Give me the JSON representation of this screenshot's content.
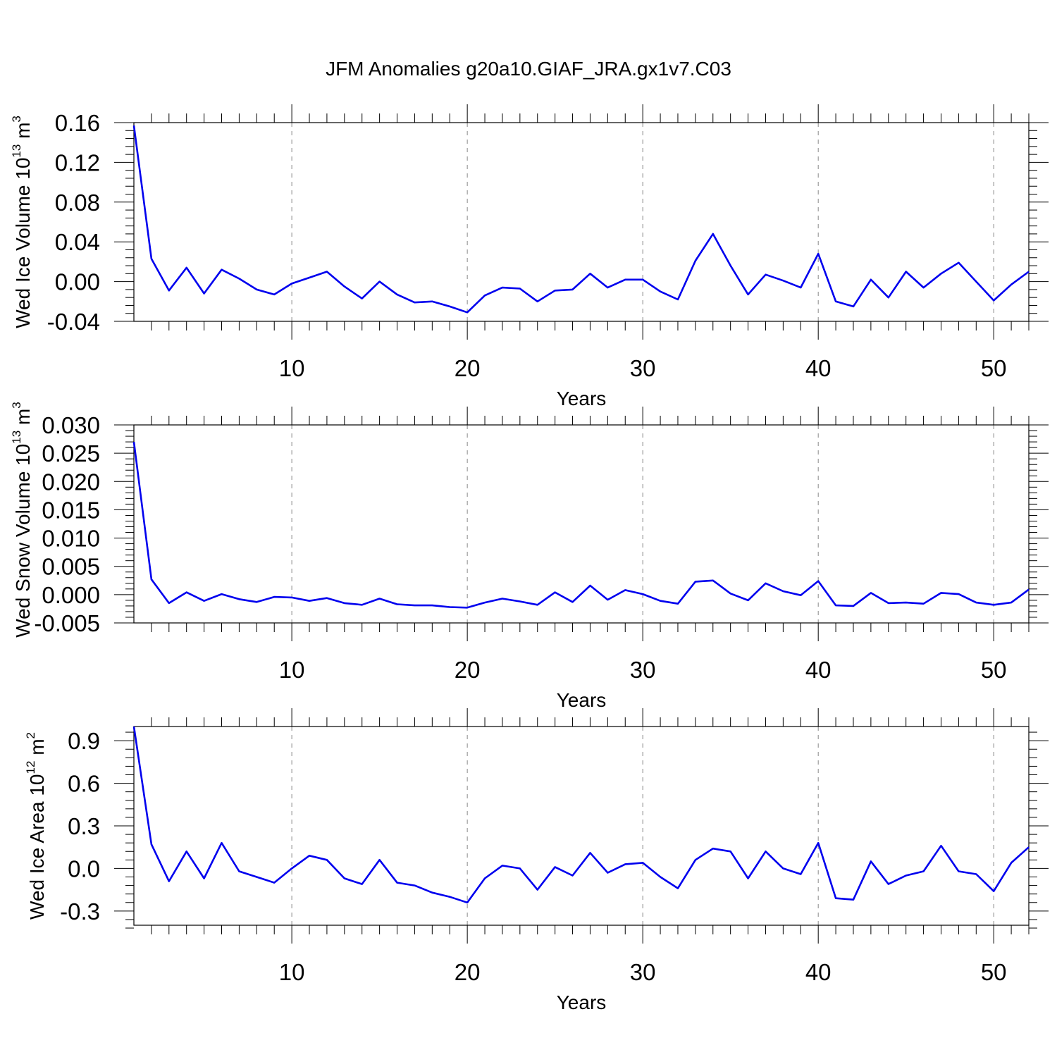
{
  "title": "JFM Anomalies g20a10.GIAF_JRA.gx1v7.C03",
  "chart_data": [
    {
      "type": "line",
      "title": "JFM Anomalies g20a10.GIAF_JRA.gx1v7.C03",
      "ylabel": "Wed Ice Volume",
      "ylabel_unit_base": "10",
      "ylabel_unit_exp": "13",
      "ylabel_unit_suffix": "m",
      "ylabel_unit_suffix_exp": "3",
      "xlabel": "Years",
      "xlim": [
        1,
        52
      ],
      "ylim": [
        -0.04,
        0.16
      ],
      "xticks": [
        10,
        20,
        30,
        40,
        50
      ],
      "xtick_labels": [
        "10",
        "20",
        "30",
        "40",
        "50"
      ],
      "yticks": [
        -0.04,
        0.0,
        0.04,
        0.08,
        0.12,
        0.16
      ],
      "ytick_labels": [
        "-0.04",
        "0.00",
        "0.04",
        "0.08",
        "0.12",
        "0.16"
      ],
      "grid": "vertical dashed at x ticks",
      "color": "#0000ee",
      "series": [
        {
          "name": "Wed Ice Volume",
          "x": [
            1,
            2,
            3,
            4,
            5,
            6,
            7,
            8,
            9,
            10,
            11,
            12,
            13,
            14,
            15,
            16,
            17,
            18,
            19,
            20,
            21,
            22,
            23,
            24,
            25,
            26,
            27,
            28,
            29,
            30,
            31,
            32,
            33,
            34,
            35,
            36,
            37,
            38,
            39,
            40,
            41,
            42,
            43,
            44,
            45,
            46,
            47,
            48,
            49,
            50,
            51,
            52
          ],
          "values": [
            0.157,
            0.023,
            -0.009,
            0.014,
            -0.012,
            0.012,
            0.003,
            -0.008,
            -0.013,
            -0.002,
            0.004,
            0.01,
            -0.005,
            -0.017,
            0.0,
            -0.013,
            -0.021,
            -0.02,
            -0.025,
            -0.031,
            -0.014,
            -0.006,
            -0.007,
            -0.02,
            -0.009,
            -0.008,
            0.008,
            -0.006,
            0.002,
            0.002,
            -0.01,
            -0.018,
            0.021,
            0.048,
            0.016,
            -0.013,
            0.007,
            0.001,
            -0.006,
            0.028,
            -0.02,
            -0.025,
            0.002,
            -0.016,
            0.01,
            -0.006,
            0.008,
            0.019,
            0.0,
            -0.019,
            -0.003,
            0.01
          ]
        }
      ]
    },
    {
      "type": "line",
      "ylabel": "Wed Snow Volume",
      "ylabel_unit_base": "10",
      "ylabel_unit_exp": "13",
      "ylabel_unit_suffix": "m",
      "ylabel_unit_suffix_exp": "3",
      "xlabel": "Years",
      "xlim": [
        1,
        52
      ],
      "ylim": [
        -0.005,
        0.03
      ],
      "xticks": [
        10,
        20,
        30,
        40,
        50
      ],
      "xtick_labels": [
        "10",
        "20",
        "30",
        "40",
        "50"
      ],
      "yticks": [
        -0.005,
        0.0,
        0.005,
        0.01,
        0.015,
        0.02,
        0.025,
        0.03
      ],
      "ytick_labels": [
        "-0.005",
        "0.000",
        "0.005",
        "0.010",
        "0.015",
        "0.020",
        "0.025",
        "0.030"
      ],
      "grid": "vertical dashed at x ticks",
      "color": "#0000ee",
      "series": [
        {
          "name": "Wed Snow Volume",
          "x": [
            1,
            2,
            3,
            4,
            5,
            6,
            7,
            8,
            9,
            10,
            11,
            12,
            13,
            14,
            15,
            16,
            17,
            18,
            19,
            20,
            21,
            22,
            23,
            24,
            25,
            26,
            27,
            28,
            29,
            30,
            31,
            32,
            33,
            34,
            35,
            36,
            37,
            38,
            39,
            40,
            41,
            42,
            43,
            44,
            45,
            46,
            47,
            48,
            49,
            50,
            51,
            52
          ],
          "values": [
            0.027,
            0.0027,
            -0.0015,
            0.0004,
            -0.0011,
            0.0001,
            -0.0008,
            -0.0013,
            -0.0004,
            -0.0005,
            -0.0011,
            -0.0006,
            -0.0015,
            -0.0018,
            -0.0007,
            -0.0017,
            -0.0019,
            -0.0019,
            -0.0022,
            -0.0023,
            -0.0014,
            -0.0007,
            -0.0012,
            -0.0018,
            0.0004,
            -0.0013,
            0.0016,
            -0.0009,
            0.0008,
            0.0001,
            -0.0011,
            -0.0016,
            0.0023,
            0.0025,
            0.0002,
            -0.001,
            0.002,
            0.0006,
            -0.0001,
            0.0024,
            -0.0019,
            -0.002,
            0.0003,
            -0.0015,
            -0.0014,
            -0.0016,
            0.0003,
            0.0001,
            -0.0014,
            -0.0018,
            -0.0014,
            0.0009
          ]
        }
      ]
    },
    {
      "type": "line",
      "ylabel": "Wed Ice Area",
      "ylabel_unit_base": "10",
      "ylabel_unit_exp": "12",
      "ylabel_unit_suffix": "m",
      "ylabel_unit_suffix_exp": "2",
      "xlabel": "Years",
      "xlim": [
        1,
        52
      ],
      "ylim": [
        -0.4,
        1.0
      ],
      "xticks": [
        10,
        20,
        30,
        40,
        50
      ],
      "xtick_labels": [
        "10",
        "20",
        "30",
        "40",
        "50"
      ],
      "yticks": [
        -0.3,
        0.0,
        0.3,
        0.6,
        0.9
      ],
      "ytick_labels": [
        "-0.3",
        "0.0",
        "0.3",
        "0.6",
        "0.9"
      ],
      "grid": "vertical dashed at x ticks",
      "color": "#0000ee",
      "series": [
        {
          "name": "Wed Ice Area",
          "x": [
            1,
            2,
            3,
            4,
            5,
            6,
            7,
            8,
            9,
            10,
            11,
            12,
            13,
            14,
            15,
            16,
            17,
            18,
            19,
            20,
            21,
            22,
            23,
            24,
            25,
            26,
            27,
            28,
            29,
            30,
            31,
            32,
            33,
            34,
            35,
            36,
            37,
            38,
            39,
            40,
            41,
            42,
            43,
            44,
            45,
            46,
            47,
            48,
            49,
            50,
            51,
            52
          ],
          "values": [
            1.0,
            0.17,
            -0.09,
            0.12,
            -0.07,
            0.18,
            -0.02,
            -0.06,
            -0.1,
            0.0,
            0.09,
            0.06,
            -0.07,
            -0.11,
            0.06,
            -0.1,
            -0.12,
            -0.17,
            -0.2,
            -0.24,
            -0.07,
            0.02,
            0.0,
            -0.15,
            0.01,
            -0.05,
            0.11,
            -0.03,
            0.03,
            0.04,
            -0.06,
            -0.14,
            0.06,
            0.14,
            0.12,
            -0.07,
            0.12,
            0.0,
            -0.04,
            0.18,
            -0.21,
            -0.22,
            0.05,
            -0.11,
            -0.05,
            -0.02,
            0.16,
            -0.02,
            -0.04,
            -0.16,
            0.04,
            0.15
          ]
        }
      ]
    }
  ]
}
